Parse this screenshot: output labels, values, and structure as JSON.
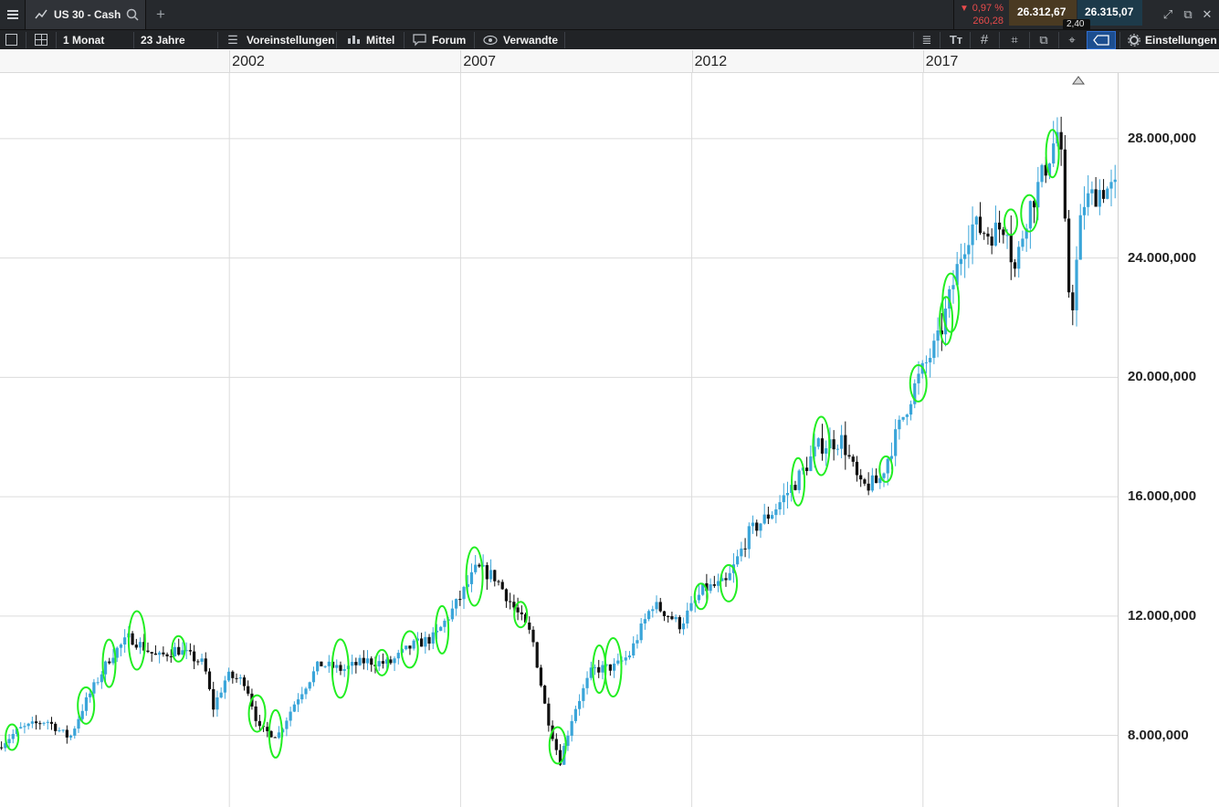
{
  "header": {
    "instrument_name": "US 30 - Cash",
    "change_percent": "0,97 %",
    "change_points": "260,28",
    "bid": "26.312,67",
    "ask": "26.315,07",
    "spread": "2,40",
    "colors": {
      "down": "#e84b4b",
      "bid_bg": "#4a3a22",
      "ask_bg": "#1d3a4a"
    }
  },
  "toolbar": {
    "interval": "1 Monat",
    "range": "23 Jahre",
    "presets": "Voreinstellungen",
    "average": "Mittel",
    "forum": "Forum",
    "related": "Verwandte",
    "settings": "Einstellungen"
  },
  "chart_data": {
    "type": "candlestick",
    "x_tick_labels": [
      "2002",
      "2007",
      "2012",
      "2017"
    ],
    "y_tick_labels": [
      "8.000,000",
      "12.000,000",
      "16.000,000",
      "20.000,000",
      "24.000,000",
      "28.000,000"
    ],
    "y_ticks": [
      8000,
      12000,
      16000,
      20000,
      24000,
      28000
    ],
    "ylim": [
      5600,
      30200
    ],
    "xlim": [
      1997.04,
      2021.21
    ],
    "grid": true,
    "colors": {
      "up": "#3aa5d9",
      "down": "#111111",
      "marker": "#22ee22"
    },
    "anchors": [
      [
        1997.04,
        7600
      ],
      [
        1997.5,
        8200
      ],
      [
        1998.1,
        8500
      ],
      [
        1998.6,
        7900
      ],
      [
        1998.9,
        9000
      ],
      [
        1999.5,
        10700
      ],
      [
        1999.9,
        11300
      ],
      [
        2000.5,
        10600
      ],
      [
        2000.9,
        10900
      ],
      [
        2001.5,
        10400
      ],
      [
        2001.7,
        8900
      ],
      [
        2002.0,
        10000
      ],
      [
        2002.4,
        9800
      ],
      [
        2002.7,
        8200
      ],
      [
        2003.1,
        8000
      ],
      [
        2003.5,
        9200
      ],
      [
        2004.0,
        10400
      ],
      [
        2004.5,
        10200
      ],
      [
        2005.0,
        10500
      ],
      [
        2005.5,
        10400
      ],
      [
        2006.0,
        11000
      ],
      [
        2006.5,
        11300
      ],
      [
        2007.0,
        12500
      ],
      [
        2007.4,
        13600
      ],
      [
        2007.8,
        13300
      ],
      [
        2008.2,
        12300
      ],
      [
        2008.6,
        11300
      ],
      [
        2008.9,
        8800
      ],
      [
        2009.2,
        7100
      ],
      [
        2009.5,
        8800
      ],
      [
        2009.9,
        10200
      ],
      [
        2010.4,
        10300
      ],
      [
        2010.7,
        10700
      ],
      [
        2011.2,
        12400
      ],
      [
        2011.5,
        12100
      ],
      [
        2011.8,
        11700
      ],
      [
        2012.3,
        12900
      ],
      [
        2012.8,
        13100
      ],
      [
        2013.3,
        14800
      ],
      [
        2013.8,
        15500
      ],
      [
        2014.3,
        16500
      ],
      [
        2014.8,
        17700
      ],
      [
        2015.3,
        17900
      ],
      [
        2015.7,
        16300
      ],
      [
        2016.1,
        16500
      ],
      [
        2016.5,
        18200
      ],
      [
        2016.9,
        19800
      ],
      [
        2017.4,
        21300
      ],
      [
        2017.9,
        24300
      ],
      [
        2018.1,
        25100
      ],
      [
        2018.5,
        24800
      ],
      [
        2018.9,
        25200
      ],
      [
        2019.0,
        23300
      ],
      [
        2019.3,
        25500
      ],
      [
        2019.6,
        26600
      ],
      [
        2020.0,
        28400
      ],
      [
        2020.1,
        25500
      ],
      [
        2020.25,
        21900
      ],
      [
        2020.5,
        25800
      ],
      [
        2020.9,
        26300
      ],
      [
        2021.21,
        26300
      ]
    ],
    "highlight_years": [
      1997.3,
      1998.9,
      1999.4,
      2000.0,
      2000.9,
      2002.6,
      2003.0,
      2004.4,
      2005.3,
      2005.9,
      2006.6,
      2007.3,
      2008.3,
      2009.1,
      2010.0,
      2010.3,
      2012.2,
      2012.8,
      2014.3,
      2014.8,
      2016.2,
      2016.9,
      2017.5,
      2017.6,
      2018.9,
      2019.3,
      2019.8
    ]
  }
}
